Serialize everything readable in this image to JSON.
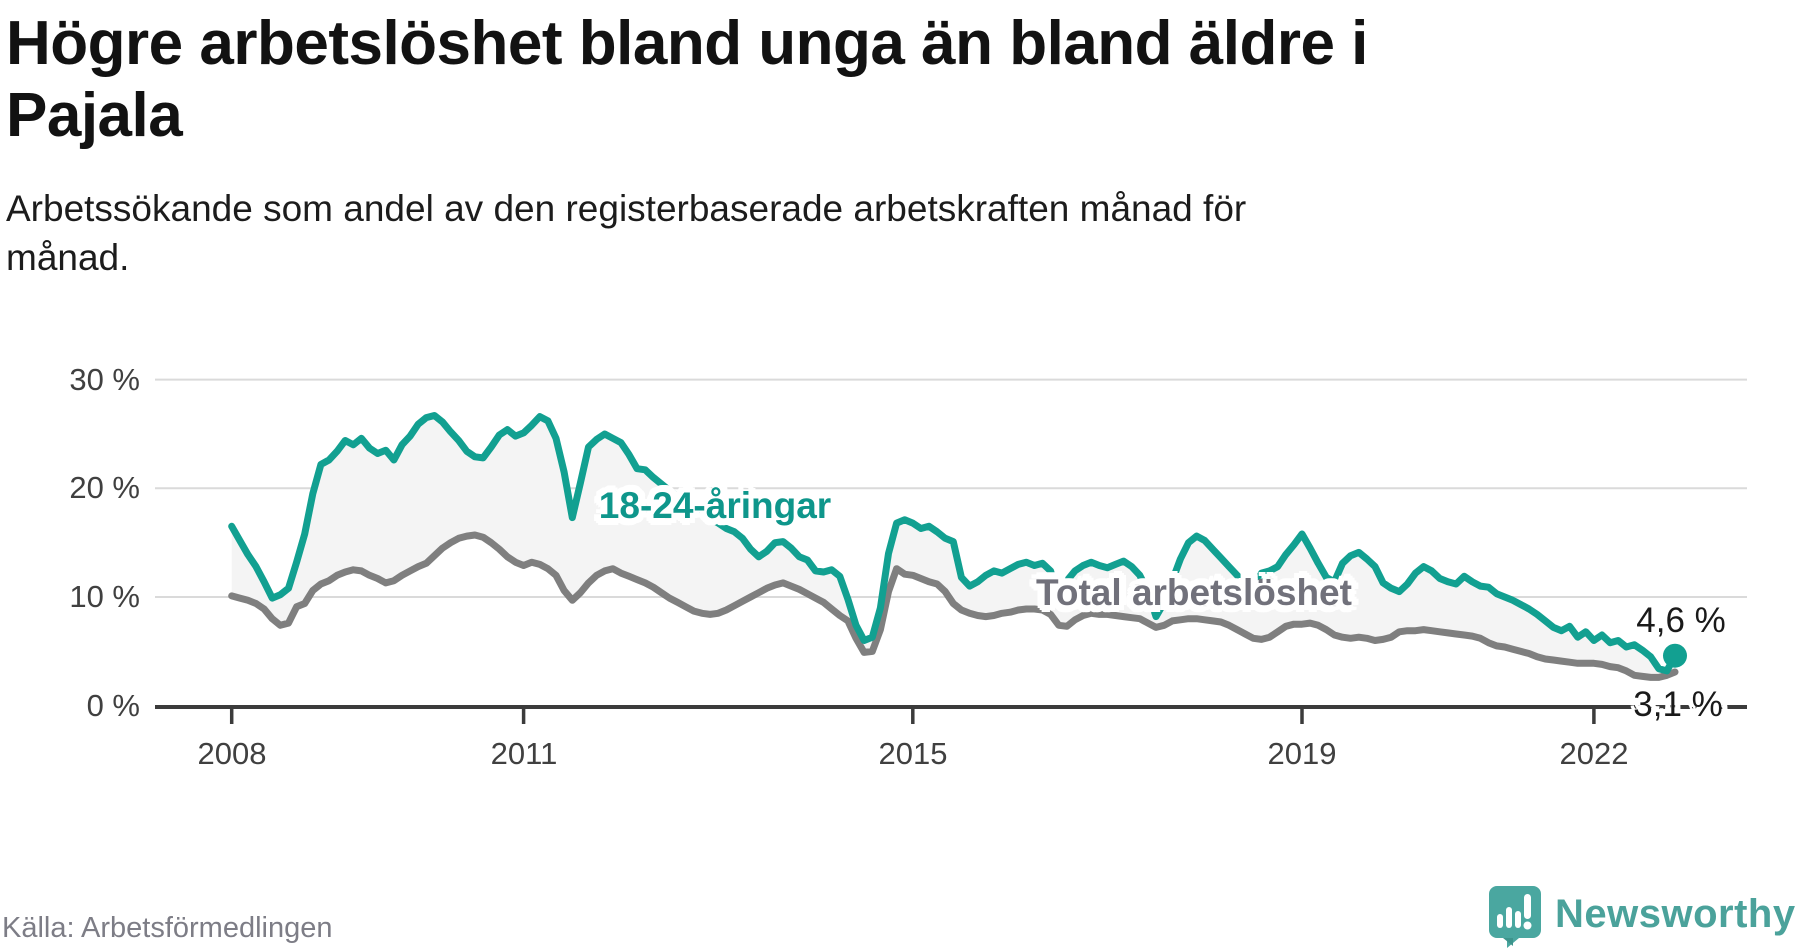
{
  "header": {
    "title": "Högre arbetslöshet bland unga än bland äldre i Pajala",
    "title_lines": [
      "Högre arbetslöshet bland unga än bland äldre i",
      "Pajala"
    ],
    "subtitle": "Arbetssökande som andel av den registerbaserade arbetskraften månad för månad.",
    "subtitle_lines": [
      "Arbetssökande som andel av den registerbaserade arbetskraften månad för",
      "månad."
    ]
  },
  "footer": {
    "source": "Källa: Arbetsförmedlingen",
    "brand": "Newsworthy"
  },
  "chart_data": {
    "type": "line",
    "title": "Högre arbetslöshet bland unga än bland äldre i Pajala",
    "xlabel": "",
    "ylabel": "",
    "y_unit": "%",
    "frequency": "monthly",
    "x_start": "2008-01",
    "x_end": "2022-11",
    "ylim": [
      0,
      34
    ],
    "grid": "horizontal",
    "legend_position": "inline-labels",
    "colors": {
      "grid": "#DADADA",
      "axis": "#3B3B3B",
      "area_between": "#F4F4F4",
      "tick_text": "#404040"
    },
    "yticks": [
      {
        "value": 0,
        "label": "0 %"
      },
      {
        "value": 10,
        "label": "10 %"
      },
      {
        "value": 20,
        "label": "20 %"
      },
      {
        "value": 30,
        "label": "30 %"
      }
    ],
    "xticks": [
      {
        "year": 2008,
        "label": "2008"
      },
      {
        "year": 2011,
        "label": "2011"
      },
      {
        "year": 2015,
        "label": "2015"
      },
      {
        "year": 2019,
        "label": "2019"
      },
      {
        "year": 2022,
        "label": "2022"
      }
    ],
    "series": [
      {
        "name": "18-24-åringar",
        "inline_label": "18-24-åringar",
        "end_label": "4,6 %",
        "end_value": 4.6,
        "color": "#12A091",
        "end_dot": true,
        "values": [
          16.5,
          15.2,
          13.9,
          12.8,
          11.4,
          9.9,
          10.2,
          10.8,
          13.2,
          15.8,
          19.5,
          22.2,
          22.6,
          23.4,
          24.4,
          24.0,
          24.6,
          23.7,
          23.2,
          23.5,
          22.6,
          24.0,
          24.8,
          25.9,
          26.5,
          26.7,
          26.1,
          25.2,
          24.4,
          23.4,
          22.9,
          22.8,
          23.8,
          24.9,
          25.4,
          24.8,
          25.1,
          25.8,
          26.6,
          26.2,
          24.6,
          21.5,
          17.3,
          20.5,
          23.8,
          24.5,
          25.0,
          24.6,
          24.2,
          23.1,
          21.8,
          21.7,
          21.0,
          20.4,
          19.8,
          19.2,
          18.7,
          18.2,
          17.7,
          17.2,
          16.8,
          16.3,
          16.0,
          15.4,
          14.4,
          13.7,
          14.2,
          15.0,
          15.1,
          14.5,
          13.7,
          13.4,
          12.4,
          12.3,
          12.5,
          11.9,
          9.8,
          7.4,
          6.0,
          6.3,
          9.0,
          14.0,
          16.8,
          17.1,
          16.8,
          16.3,
          16.5,
          16.0,
          15.4,
          15.1,
          11.8,
          11.0,
          11.4,
          12.0,
          12.4,
          12.2,
          12.6,
          13.0,
          13.2,
          12.9,
          13.1,
          12.4,
          9.6,
          11.5,
          12.4,
          12.9,
          13.2,
          12.9,
          12.7,
          13.0,
          13.3,
          12.8,
          12.0,
          10.5,
          8.2,
          9.5,
          11.5,
          13.5,
          15.0,
          15.6,
          15.2,
          14.4,
          13.6,
          12.8,
          12.0,
          11.2,
          10.6,
          12.2,
          12.4,
          12.8,
          13.9,
          14.8,
          15.8,
          14.5,
          13.1,
          11.8,
          11.4,
          13.1,
          13.8,
          14.1,
          13.5,
          12.8,
          11.3,
          10.8,
          10.5,
          11.2,
          12.2,
          12.8,
          12.4,
          11.7,
          11.4,
          11.2,
          11.9,
          11.4,
          11.0,
          10.9,
          10.3,
          10.0,
          9.7,
          9.3,
          8.9,
          8.4,
          7.8,
          7.2,
          6.9,
          7.3,
          6.3,
          6.8,
          6.0,
          6.5,
          5.8,
          6.0,
          5.4,
          5.6,
          5.1,
          4.5,
          3.4,
          3.2,
          4.6
        ]
      },
      {
        "name": "Total arbetslöshet",
        "inline_label": "Total arbetslöshet",
        "end_label": "3,1 %",
        "end_value": 3.1,
        "color": "#7F7F7F",
        "end_dot": false,
        "values": [
          10.1,
          9.9,
          9.7,
          9.4,
          8.9,
          8.0,
          7.4,
          7.6,
          9.1,
          9.4,
          10.6,
          11.2,
          11.5,
          12.0,
          12.3,
          12.5,
          12.4,
          12.0,
          11.7,
          11.3,
          11.5,
          12.0,
          12.4,
          12.8,
          13.1,
          13.8,
          14.5,
          15.0,
          15.4,
          15.6,
          15.7,
          15.5,
          15.0,
          14.4,
          13.7,
          13.2,
          12.9,
          13.2,
          13.0,
          12.6,
          12.0,
          10.6,
          9.7,
          10.4,
          11.3,
          12.0,
          12.4,
          12.6,
          12.2,
          11.9,
          11.6,
          11.3,
          10.9,
          10.4,
          9.9,
          9.5,
          9.1,
          8.7,
          8.5,
          8.4,
          8.5,
          8.8,
          9.2,
          9.6,
          10.0,
          10.4,
          10.8,
          11.1,
          11.3,
          11.0,
          10.7,
          10.3,
          9.9,
          9.5,
          8.9,
          8.3,
          7.8,
          6.2,
          4.9,
          5.0,
          7.0,
          10.5,
          12.6,
          12.1,
          12.0,
          11.7,
          11.4,
          11.2,
          10.5,
          9.4,
          8.8,
          8.5,
          8.3,
          8.2,
          8.3,
          8.5,
          8.6,
          8.8,
          8.9,
          8.9,
          8.8,
          8.4,
          7.4,
          7.3,
          7.9,
          8.3,
          8.5,
          8.4,
          8.4,
          8.3,
          8.2,
          8.1,
          8.0,
          7.6,
          7.2,
          7.4,
          7.8,
          7.9,
          8.0,
          8.0,
          7.9,
          7.8,
          7.7,
          7.4,
          7.0,
          6.6,
          6.2,
          6.1,
          6.3,
          6.8,
          7.3,
          7.5,
          7.5,
          7.6,
          7.4,
          7.0,
          6.5,
          6.3,
          6.2,
          6.3,
          6.2,
          6.0,
          6.1,
          6.3,
          6.8,
          6.9,
          6.9,
          7.0,
          6.9,
          6.8,
          6.7,
          6.6,
          6.5,
          6.4,
          6.2,
          5.8,
          5.5,
          5.4,
          5.2,
          5.0,
          4.8,
          4.5,
          4.3,
          4.2,
          4.1,
          4.0,
          3.9,
          3.9,
          3.9,
          3.8,
          3.6,
          3.5,
          3.2,
          2.8,
          2.7,
          2.6,
          2.6,
          2.8,
          3.1
        ]
      }
    ]
  }
}
